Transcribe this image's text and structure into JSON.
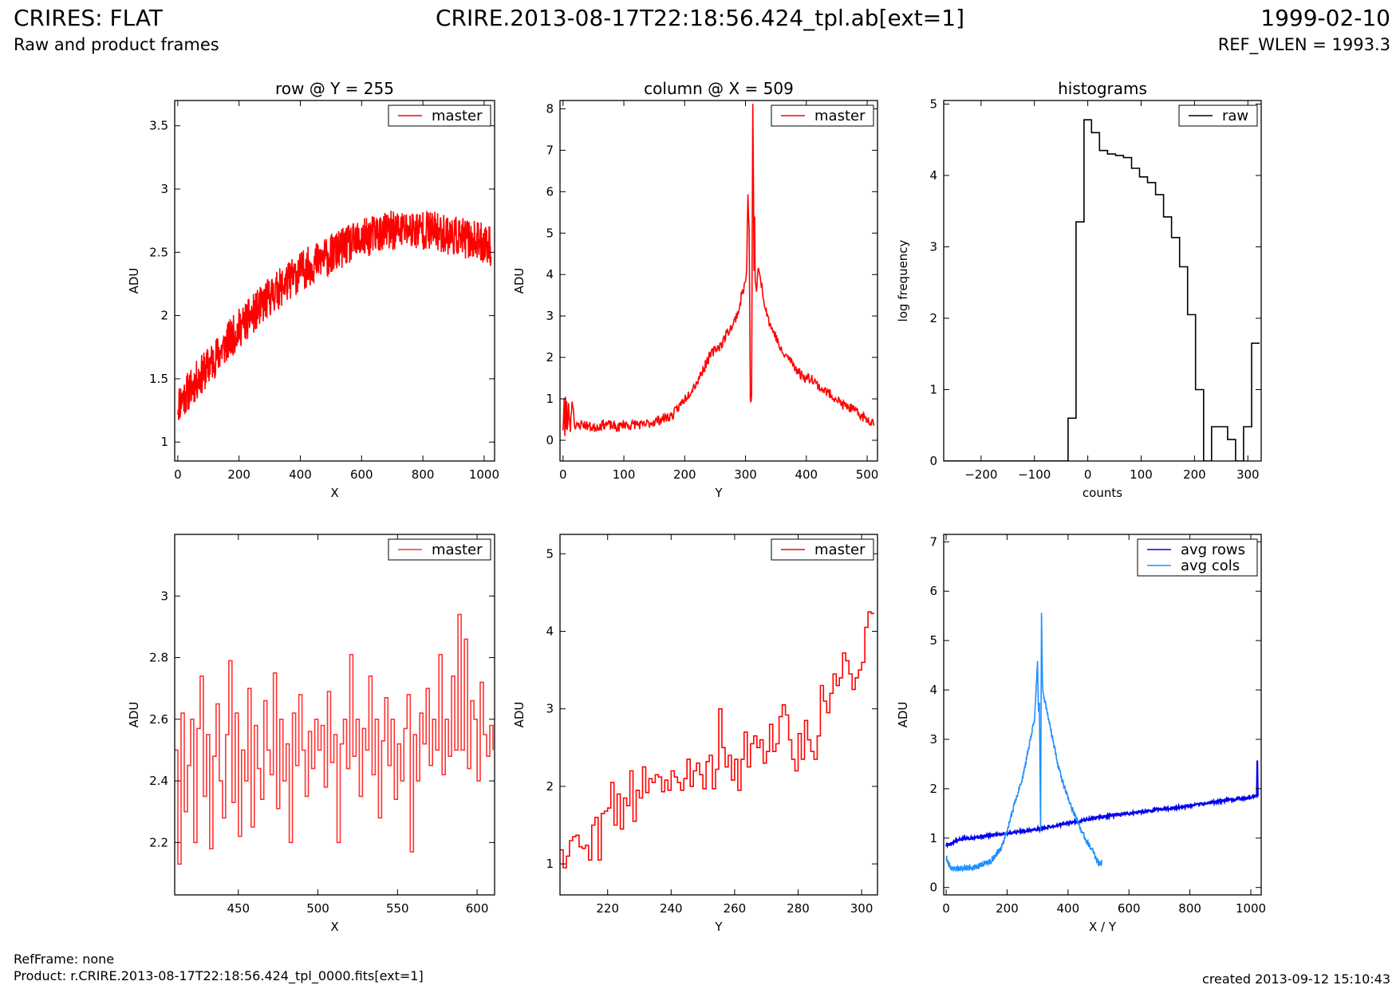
{
  "header": {
    "title_left": "CRIRES: FLAT",
    "subtitle_left": "Raw and product frames",
    "title_center": "CRIRE.2013-08-17T22:18:56.424_tpl.ab[ext=1]",
    "title_right": "1999-02-10",
    "subtitle_right": "REF_WLEN = 1993.3"
  },
  "footer": {
    "refframe": "RefFrame: none",
    "product": "Product: r.CRIRE.2013-08-17T22:18:56.424_tpl_0000.fits[ext=1]",
    "created": "created 2013-09-12 15:10:43"
  },
  "colors": {
    "master": "#ff0000",
    "master_zoom": "#ff3333",
    "raw": "#000000",
    "avg_rows": "#0000ee",
    "avg_cols": "#1e90ff"
  },
  "chart_data": [
    {
      "type": "line",
      "title": "row @ Y = 255",
      "xlabel": "X",
      "ylabel": "ADU",
      "xlim": [
        -10,
        1034
      ],
      "ylim": [
        0.85,
        3.7
      ],
      "xticks": [
        0,
        200,
        400,
        600,
        800,
        1000
      ],
      "yticks": [
        1.0,
        1.5,
        2.0,
        2.5,
        3.0,
        3.5
      ],
      "legend": [
        "master"
      ],
      "legend_position": "top-right",
      "series": [
        {
          "name": "master",
          "color": "#ff0000",
          "trend": true,
          "x": [
            0,
            50,
            100,
            150,
            200,
            250,
            300,
            350,
            400,
            450,
            500,
            550,
            600,
            650,
            700,
            750,
            800,
            850,
            900,
            950,
            1000,
            1023
          ],
          "y": [
            1.3,
            1.45,
            1.6,
            1.75,
            1.9,
            2.02,
            2.15,
            2.25,
            2.35,
            2.42,
            2.48,
            2.55,
            2.6,
            2.65,
            2.67,
            2.68,
            2.68,
            2.66,
            2.63,
            2.6,
            2.57,
            2.55
          ],
          "noise": 0.16,
          "samples": 1024,
          "seed": 11
        }
      ]
    },
    {
      "type": "line",
      "title": "column @ X = 509",
      "xlabel": "Y",
      "ylabel": "ADU",
      "xlim": [
        -5,
        517
      ],
      "ylim": [
        -0.5,
        8.2
      ],
      "xticks": [
        0,
        100,
        200,
        300,
        400,
        500
      ],
      "yticks": [
        0,
        1,
        2,
        3,
        4,
        5,
        6,
        7,
        8
      ],
      "legend": [
        "master"
      ],
      "legend_position": "top-right",
      "series": [
        {
          "name": "master",
          "color": "#ff0000",
          "step": true,
          "x": [
            0,
            2,
            3,
            4,
            5,
            6,
            7,
            9,
            12,
            15,
            20,
            25,
            30,
            40,
            50,
            60,
            70,
            80,
            90,
            100,
            110,
            120,
            130,
            140,
            150,
            160,
            170,
            180,
            190,
            200,
            210,
            220,
            230,
            240,
            250,
            260,
            270,
            280,
            285,
            290,
            295,
            300,
            302,
            304,
            306,
            308,
            310,
            312,
            313,
            314,
            315,
            316,
            318,
            320,
            325,
            330,
            340,
            350,
            360,
            370,
            380,
            390,
            400,
            410,
            420,
            430,
            440,
            450,
            460,
            470,
            480,
            490,
            500,
            511
          ],
          "y": [
            0.3,
            1.0,
            0.1,
            1.0,
            0.2,
            1.0,
            0.2,
            0.8,
            0.3,
            1.0,
            0.3,
            0.35,
            0.4,
            0.35,
            0.3,
            0.35,
            0.4,
            0.35,
            0.3,
            0.4,
            0.35,
            0.4,
            0.35,
            0.4,
            0.45,
            0.5,
            0.55,
            0.6,
            0.8,
            1.0,
            1.2,
            1.4,
            1.7,
            2.0,
            2.2,
            2.3,
            2.6,
            2.8,
            3.0,
            3.2,
            3.6,
            3.8,
            4.2,
            5.9,
            5.0,
            1.0,
            1.0,
            8.2,
            6.2,
            4.0,
            5.5,
            3.8,
            3.6,
            4.1,
            3.9,
            3.4,
            2.8,
            2.5,
            2.1,
            2.0,
            1.8,
            1.6,
            1.5,
            1.5,
            1.3,
            1.2,
            1.1,
            1.0,
            0.85,
            0.8,
            0.7,
            0.6,
            0.5,
            0.45
          ],
          "noise": 0.12,
          "samples": 512,
          "seed": 23
        }
      ]
    },
    {
      "type": "line",
      "title": "histograms",
      "xlabel": "counts",
      "ylabel": "log frequency",
      "xlim": [
        -270,
        325
      ],
      "ylim": [
        0,
        5.05
      ],
      "xticks": [
        -200,
        -100,
        0,
        100,
        200,
        300
      ],
      "yticks": [
        0,
        1,
        2,
        3,
        4,
        5
      ],
      "legend": [
        "raw"
      ],
      "legend_position": "top-right",
      "series": [
        {
          "name": "raw",
          "color": "#000000",
          "step": true,
          "x": [
            -270,
            -37,
            -37,
            -22,
            -22,
            -7,
            -7,
            7,
            7,
            22,
            22,
            37,
            37,
            52,
            52,
            67,
            67,
            82,
            82,
            97,
            97,
            112,
            112,
            127,
            127,
            142,
            142,
            157,
            157,
            172,
            172,
            187,
            187,
            202,
            202,
            217,
            217,
            232,
            232,
            247,
            247,
            262,
            262,
            277,
            277,
            292,
            292,
            307,
            307,
            322,
            322
          ],
          "y": [
            0,
            0,
            0.6,
            0.6,
            3.35,
            3.35,
            4.78,
            4.78,
            4.6,
            4.6,
            4.35,
            4.35,
            4.3,
            4.3,
            4.28,
            4.28,
            4.25,
            4.25,
            4.1,
            4.1,
            3.98,
            3.98,
            3.9,
            3.9,
            3.73,
            3.73,
            3.42,
            3.42,
            3.13,
            3.13,
            2.72,
            2.72,
            2.05,
            2.05,
            1.0,
            1.0,
            0,
            0,
            0.48,
            0.48,
            0.48,
            0.48,
            0.3,
            0.3,
            0,
            0,
            0.48,
            0.48,
            1.65,
            1.65,
            1.65
          ]
        }
      ]
    },
    {
      "type": "line",
      "title": "",
      "xlabel": "X",
      "ylabel": "ADU",
      "xlim": [
        410,
        611
      ],
      "ylim": [
        2.03,
        3.2
      ],
      "xticks": [
        450,
        500,
        550,
        600
      ],
      "yticks": [
        2.2,
        2.4,
        2.6,
        2.8,
        3.0
      ],
      "legend": [
        "master"
      ],
      "legend_position": "top-right",
      "series": [
        {
          "name": "master",
          "color": "#ff3333",
          "step": true,
          "x": [
            410,
            412,
            414,
            416,
            418,
            420,
            422,
            424,
            426,
            428,
            430,
            432,
            434,
            436,
            438,
            440,
            442,
            444,
            446,
            448,
            450,
            452,
            454,
            456,
            458,
            460,
            462,
            464,
            466,
            468,
            470,
            472,
            474,
            476,
            478,
            480,
            482,
            484,
            486,
            488,
            490,
            492,
            494,
            496,
            498,
            500,
            502,
            504,
            506,
            508,
            510,
            512,
            514,
            516,
            518,
            520,
            522,
            524,
            526,
            528,
            530,
            532,
            534,
            536,
            538,
            540,
            542,
            544,
            546,
            548,
            550,
            552,
            554,
            556,
            558,
            560,
            562,
            564,
            566,
            568,
            570,
            572,
            574,
            576,
            578,
            580,
            582,
            584,
            586,
            588,
            590,
            592,
            594,
            596,
            598,
            600,
            602,
            604,
            606,
            608,
            610
          ],
          "y": [
            2.5,
            2.13,
            2.62,
            2.3,
            2.45,
            2.6,
            2.2,
            2.57,
            2.74,
            2.35,
            2.55,
            2.18,
            2.48,
            2.65,
            2.4,
            2.28,
            2.55,
            2.79,
            2.33,
            2.62,
            2.22,
            2.5,
            2.4,
            2.7,
            2.25,
            2.58,
            2.44,
            2.34,
            2.66,
            2.5,
            2.42,
            2.75,
            2.31,
            2.6,
            2.4,
            2.52,
            2.2,
            2.62,
            2.45,
            2.68,
            2.5,
            2.35,
            2.56,
            2.44,
            2.6,
            2.5,
            2.58,
            2.38,
            2.69,
            2.46,
            2.55,
            2.2,
            2.52,
            2.6,
            2.44,
            2.81,
            2.48,
            2.6,
            2.35,
            2.57,
            2.5,
            2.74,
            2.42,
            2.6,
            2.28,
            2.53,
            2.67,
            2.45,
            2.6,
            2.34,
            2.52,
            2.4,
            2.57,
            2.68,
            2.17,
            2.55,
            2.4,
            2.62,
            2.52,
            2.7,
            2.45,
            2.6,
            2.5,
            2.81,
            2.42,
            2.6,
            2.48,
            2.74,
            2.5,
            2.94,
            2.5,
            2.86,
            2.44,
            2.66,
            2.6,
            2.4,
            2.72,
            2.55,
            2.48,
            2.58,
            2.5
          ]
        }
      ]
    },
    {
      "type": "line",
      "title": "",
      "xlabel": "Y",
      "ylabel": "ADU",
      "xlim": [
        205,
        305
      ],
      "ylim": [
        0.6,
        5.25
      ],
      "xticks": [
        220,
        240,
        260,
        280,
        300
      ],
      "yticks": [
        1,
        2,
        3,
        4,
        5
      ],
      "legend": [
        "master"
      ],
      "legend_position": "top-right",
      "series": [
        {
          "name": "master",
          "color": "#ff0000",
          "step": true,
          "x": [
            205,
            206,
            207,
            208,
            209,
            210,
            211,
            212,
            213,
            214,
            215,
            216,
            217,
            218,
            219,
            220,
            221,
            222,
            223,
            224,
            225,
            226,
            227,
            228,
            229,
            230,
            231,
            232,
            233,
            234,
            235,
            236,
            237,
            238,
            239,
            240,
            241,
            242,
            243,
            244,
            245,
            246,
            247,
            248,
            249,
            250,
            251,
            252,
            253,
            254,
            255,
            256,
            257,
            258,
            259,
            260,
            261,
            262,
            263,
            264,
            265,
            266,
            267,
            268,
            269,
            270,
            271,
            272,
            273,
            274,
            275,
            276,
            277,
            278,
            279,
            280,
            281,
            282,
            283,
            284,
            285,
            286,
            287,
            288,
            289,
            290,
            291,
            292,
            293,
            294,
            295,
            296,
            297,
            298,
            299,
            300,
            301,
            302,
            303,
            304
          ],
          "y": [
            1.18,
            0.95,
            1.1,
            1.3,
            1.35,
            1.37,
            1.22,
            1.2,
            1.24,
            1.05,
            1.5,
            1.6,
            1.05,
            1.65,
            1.68,
            1.72,
            2.05,
            1.5,
            1.9,
            1.45,
            1.85,
            1.75,
            2.2,
            1.55,
            1.95,
            1.85,
            2.25,
            1.92,
            2.1,
            2.05,
            2.15,
            2.12,
            1.93,
            2.08,
            1.95,
            2.2,
            2.12,
            2.05,
            1.95,
            2.1,
            2.35,
            2.0,
            2.2,
            2.3,
            2.15,
            1.97,
            2.32,
            2.4,
            1.97,
            2.22,
            3.0,
            2.5,
            2.25,
            2.4,
            2.08,
            2.35,
            1.95,
            2.35,
            2.7,
            2.25,
            2.55,
            2.65,
            2.5,
            2.6,
            2.3,
            2.45,
            2.8,
            2.45,
            2.55,
            2.9,
            3.05,
            2.92,
            2.6,
            2.35,
            2.2,
            2.68,
            2.35,
            2.85,
            2.6,
            2.45,
            2.35,
            2.65,
            3.3,
            3.1,
            2.95,
            3.2,
            3.45,
            3.3,
            3.4,
            3.72,
            3.62,
            3.45,
            3.25,
            3.4,
            3.5,
            3.6,
            4.05,
            4.25,
            4.23,
            4.23
          ]
        }
      ]
    },
    {
      "type": "line",
      "title": "",
      "xlabel": "X / Y",
      "ylabel": "ADU",
      "xlim": [
        -8,
        1034
      ],
      "ylim": [
        -0.15,
        7.15
      ],
      "xticks": [
        0,
        200,
        400,
        600,
        800,
        1000
      ],
      "yticks": [
        0,
        1,
        2,
        3,
        4,
        5,
        6,
        7
      ],
      "legend": [
        "avg rows",
        "avg cols"
      ],
      "legend_position": "top-right",
      "series": [
        {
          "name": "avg rows",
          "color": "#0000ee",
          "trend": true,
          "x": [
            0,
            50,
            100,
            200,
            300,
            400,
            500,
            600,
            700,
            800,
            900,
            1000,
            1020,
            1021,
            1022,
            1023
          ],
          "y": [
            0.85,
            0.98,
            1.02,
            1.1,
            1.18,
            1.3,
            1.42,
            1.5,
            1.58,
            1.65,
            1.75,
            1.83,
            1.85,
            2.9,
            1.85,
            1.85
          ],
          "noise": 0.03,
          "samples": 600,
          "seed": 5
        },
        {
          "name": "avg cols",
          "color": "#1e90ff",
          "trend": true,
          "x": [
            0,
            10,
            20,
            50,
            100,
            150,
            180,
            200,
            220,
            250,
            270,
            290,
            300,
            303,
            306,
            310,
            313,
            316,
            320,
            330,
            350,
            370,
            400,
            420,
            440,
            460,
            480,
            500,
            511
          ],
          "y": [
            0.62,
            0.45,
            0.38,
            0.38,
            0.42,
            0.55,
            0.8,
            1.15,
            1.6,
            2.2,
            2.8,
            3.4,
            4.6,
            3.5,
            3.8,
            1.15,
            5.6,
            4.1,
            3.9,
            3.6,
            3.0,
            2.4,
            1.8,
            1.5,
            1.2,
            0.95,
            0.75,
            0.5,
            0.5
          ],
          "noise": 0.06,
          "samples": 512,
          "seed": 9
        }
      ]
    }
  ]
}
